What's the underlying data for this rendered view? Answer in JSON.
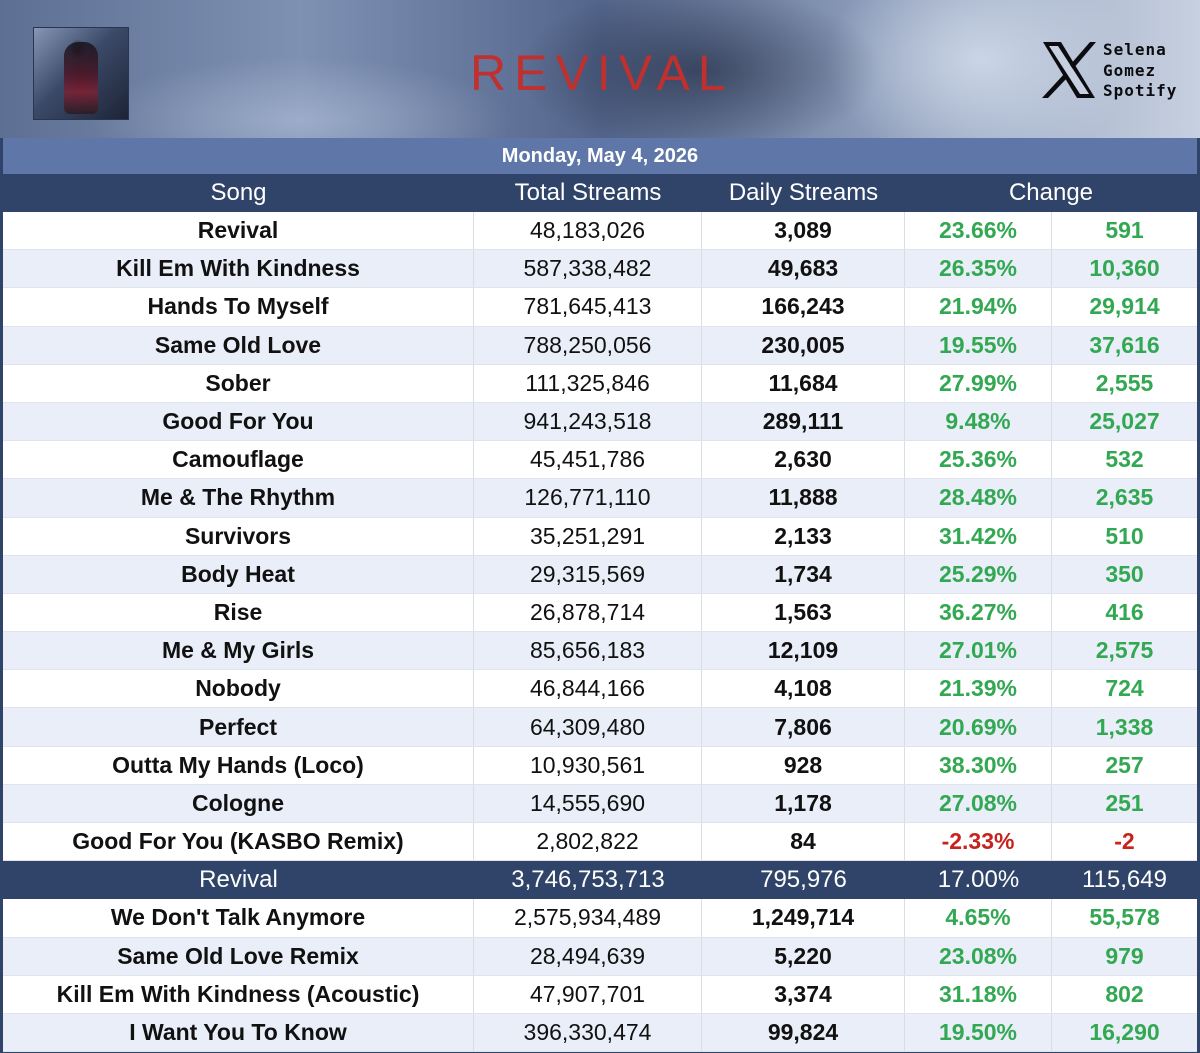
{
  "header": {
    "title": "REVIVAL",
    "brand_lines": [
      "Selena",
      "Gomez",
      "Spotify"
    ],
    "cover_alt": "Revival album cover",
    "x_icon": "x-logo-icon"
  },
  "date": "Monday, May 4, 2026",
  "columns": {
    "song": "Song",
    "total": "Total Streams",
    "daily": "Daily Streams",
    "change": "Change"
  },
  "colors": {
    "header_bg": "#2f4468",
    "date_bg": "#5f77a8",
    "positive": "#33a852",
    "negative": "#c8221e",
    "title_red": "#c0302f"
  },
  "rows": [
    {
      "song": "Revival",
      "total": "48,183,026",
      "daily": "3,089",
      "pct": "23.66%",
      "diff": "591",
      "neg": false
    },
    {
      "song": "Kill Em With Kindness",
      "total": "587,338,482",
      "daily": "49,683",
      "pct": "26.35%",
      "diff": "10,360",
      "neg": false
    },
    {
      "song": "Hands To Myself",
      "total": "781,645,413",
      "daily": "166,243",
      "pct": "21.94%",
      "diff": "29,914",
      "neg": false
    },
    {
      "song": "Same Old Love",
      "total": "788,250,056",
      "daily": "230,005",
      "pct": "19.55%",
      "diff": "37,616",
      "neg": false
    },
    {
      "song": "Sober",
      "total": "111,325,846",
      "daily": "11,684",
      "pct": "27.99%",
      "diff": "2,555",
      "neg": false
    },
    {
      "song": "Good For You",
      "total": "941,243,518",
      "daily": "289,111",
      "pct": "9.48%",
      "diff": "25,027",
      "neg": false
    },
    {
      "song": "Camouflage",
      "total": "45,451,786",
      "daily": "2,630",
      "pct": "25.36%",
      "diff": "532",
      "neg": false
    },
    {
      "song": "Me & The Rhythm",
      "total": "126,771,110",
      "daily": "11,888",
      "pct": "28.48%",
      "diff": "2,635",
      "neg": false
    },
    {
      "song": "Survivors",
      "total": "35,251,291",
      "daily": "2,133",
      "pct": "31.42%",
      "diff": "510",
      "neg": false
    },
    {
      "song": "Body Heat",
      "total": "29,315,569",
      "daily": "1,734",
      "pct": "25.29%",
      "diff": "350",
      "neg": false
    },
    {
      "song": "Rise",
      "total": "26,878,714",
      "daily": "1,563",
      "pct": "36.27%",
      "diff": "416",
      "neg": false
    },
    {
      "song": "Me & My Girls",
      "total": "85,656,183",
      "daily": "12,109",
      "pct": "27.01%",
      "diff": "2,575",
      "neg": false
    },
    {
      "song": "Nobody",
      "total": "46,844,166",
      "daily": "4,108",
      "pct": "21.39%",
      "diff": "724",
      "neg": false
    },
    {
      "song": "Perfect",
      "total": "64,309,480",
      "daily": "7,806",
      "pct": "20.69%",
      "diff": "1,338",
      "neg": false
    },
    {
      "song": "Outta My Hands (Loco)",
      "total": "10,930,561",
      "daily": "928",
      "pct": "38.30%",
      "diff": "257",
      "neg": false
    },
    {
      "song": "Cologne",
      "total": "14,555,690",
      "daily": "1,178",
      "pct": "27.08%",
      "diff": "251",
      "neg": false
    },
    {
      "song": "Good For You (KASBO Remix)",
      "total": "2,802,822",
      "daily": "84",
      "pct": "-2.33%",
      "diff": "-2",
      "neg": true
    }
  ],
  "total_row": {
    "song": "Revival",
    "total": "3,746,753,713",
    "daily": "795,976",
    "pct": "17.00%",
    "diff": "115,649"
  },
  "extra_rows": [
    {
      "song": "We Don't Talk Anymore",
      "total": "2,575,934,489",
      "daily": "1,249,714",
      "pct": "4.65%",
      "diff": "55,578",
      "neg": false
    },
    {
      "song": "Same Old Love Remix",
      "total": "28,494,639",
      "daily": "5,220",
      "pct": "23.08%",
      "diff": "979",
      "neg": false
    },
    {
      "song": "Kill Em With Kindness (Acoustic)",
      "total": "47,907,701",
      "daily": "3,374",
      "pct": "31.18%",
      "diff": "802",
      "neg": false
    },
    {
      "song": "I Want You To Know",
      "total": "396,330,474",
      "daily": "99,824",
      "pct": "19.50%",
      "diff": "16,290",
      "neg": false
    }
  ]
}
